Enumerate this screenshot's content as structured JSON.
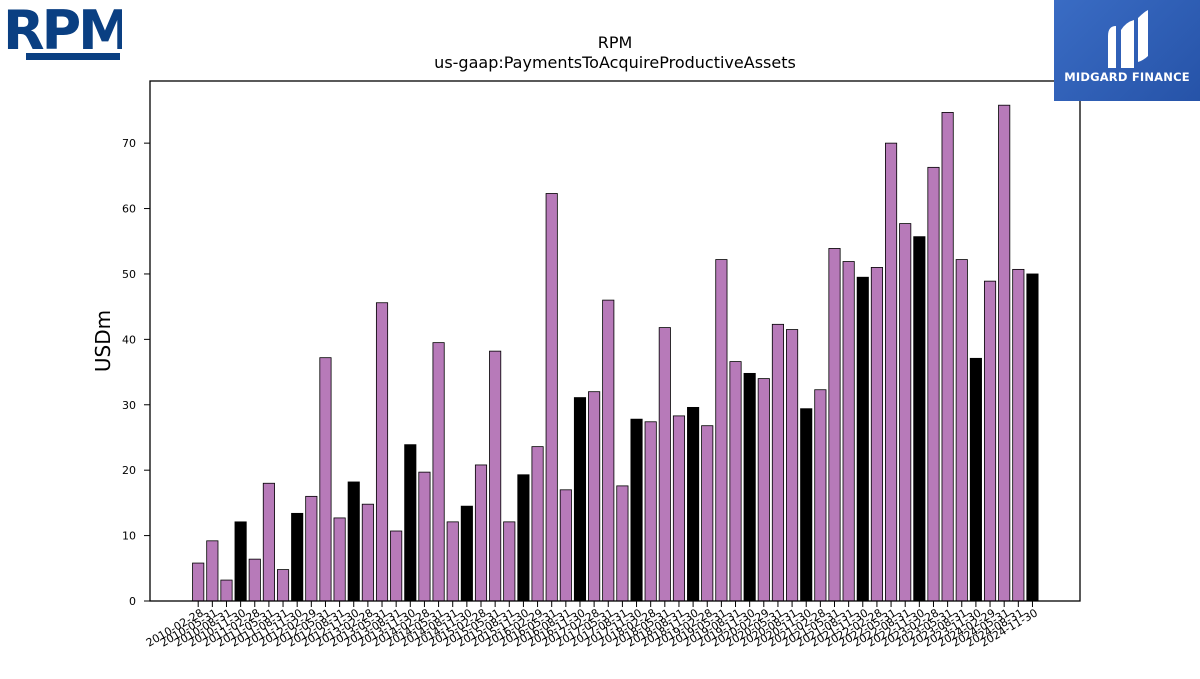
{
  "branding": {
    "company_logo_text": "RPM",
    "sponsor_logo_text": "MIDGARD FINANCE",
    "company_color": "#0a3f82",
    "sponsor_color": "#2f5fb8"
  },
  "chart_data": {
    "type": "bar",
    "title": "RPM",
    "subtitle": "us-gaap:PaymentsToAcquireProductiveAssets",
    "ylabel": "USDm",
    "xlabel": "",
    "ylim": [
      0,
      79.5
    ],
    "yticks": [
      0,
      10,
      20,
      30,
      40,
      50,
      60,
      70
    ],
    "grid": false,
    "colors": {
      "quarter": "#b77ab9",
      "fiscal_year_end": "#000000"
    },
    "categories": [
      "2010-02-28",
      "2010-05-31",
      "2010-08-31",
      "2010-11-30",
      "2011-02-28",
      "2011-05-31",
      "2011-08-31",
      "2011-11-30",
      "2012-02-29",
      "2012-05-31",
      "2012-08-31",
      "2012-11-30",
      "2013-02-28",
      "2013-05-31",
      "2013-08-31",
      "2013-11-30",
      "2014-02-28",
      "2014-05-31",
      "2014-08-31",
      "2014-11-30",
      "2015-02-28",
      "2015-05-31",
      "2015-08-31",
      "2015-11-30",
      "2016-02-29",
      "2016-05-31",
      "2016-08-31",
      "2016-11-30",
      "2017-02-28",
      "2017-05-31",
      "2017-08-31",
      "2017-11-30",
      "2018-02-28",
      "2018-05-31",
      "2018-08-31",
      "2018-11-30",
      "2019-02-28",
      "2019-05-31",
      "2019-08-31",
      "2019-11-30",
      "2020-02-29",
      "2020-05-31",
      "2020-08-31",
      "2020-11-30",
      "2021-02-28",
      "2021-05-31",
      "2021-08-31",
      "2021-11-30",
      "2022-02-28",
      "2022-05-31",
      "2022-08-31",
      "2022-11-30",
      "2023-02-28",
      "2023-05-31",
      "2023-08-31",
      "2023-11-30",
      "2024-02-29",
      "2024-05-31",
      "2024-08-31",
      "2024-11-30"
    ],
    "values": [
      5.8,
      9.2,
      3.2,
      12.1,
      6.4,
      18.0,
      4.8,
      13.4,
      16.0,
      37.2,
      12.7,
      18.2,
      14.8,
      45.6,
      10.7,
      23.9,
      19.7,
      39.5,
      12.1,
      14.5,
      20.8,
      38.2,
      12.1,
      19.3,
      23.6,
      62.3,
      17.0,
      31.1,
      32.0,
      46.0,
      17.6,
      27.8,
      27.4,
      41.8,
      28.3,
      29.6,
      26.8,
      52.2,
      36.6,
      34.8,
      34.0,
      42.3,
      41.5,
      29.4,
      32.3,
      53.9,
      51.9,
      49.5,
      51.0,
      70.0,
      57.7,
      55.7,
      66.3,
      74.7,
      52.2,
      37.1,
      48.9,
      75.8,
      50.7,
      50.0
    ],
    "fiscal_year_end_flags": [
      false,
      false,
      false,
      true,
      false,
      false,
      false,
      true,
      false,
      false,
      false,
      true,
      false,
      false,
      false,
      true,
      false,
      false,
      false,
      true,
      false,
      false,
      false,
      true,
      false,
      false,
      false,
      true,
      false,
      false,
      false,
      true,
      false,
      false,
      false,
      true,
      false,
      false,
      false,
      true,
      false,
      false,
      false,
      true,
      false,
      false,
      false,
      true,
      false,
      false,
      false,
      true,
      false,
      false,
      false,
      true,
      false,
      false,
      false,
      true
    ]
  }
}
